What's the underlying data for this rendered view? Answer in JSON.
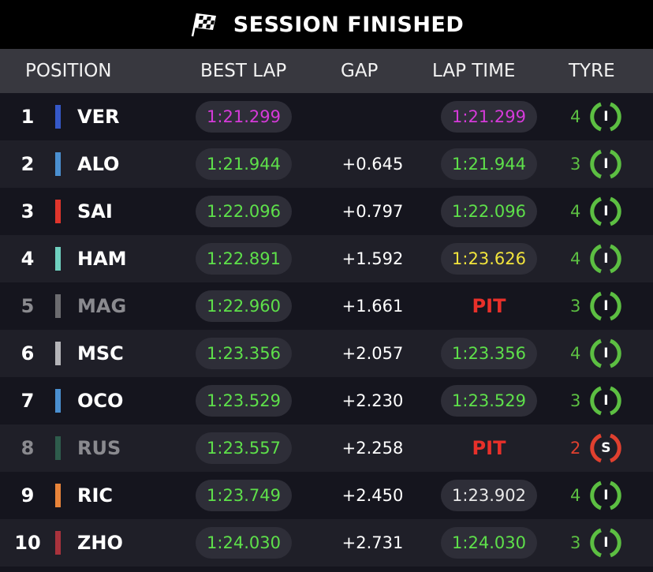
{
  "header": {
    "title": "SESSION FINISHED",
    "icon": "checkered-flag-icon"
  },
  "columns": {
    "position": "POSITION",
    "best_lap": "BEST LAP",
    "gap": "GAP",
    "lap_time": "LAP TIME",
    "tyre": "TYRE"
  },
  "colors": {
    "purple": "#d53ad9",
    "green": "#5ee04a",
    "yellow": "#f2e43c",
    "white": "#e8e8e8",
    "soft": "#e0402f",
    "inter": "#5cbf42"
  },
  "rows": [
    {
      "pos": "1",
      "driver": "VER",
      "team_color": "#3558c8",
      "best": "1:21.299",
      "best_color": "#d53ad9",
      "gap": "",
      "lap": "1:21.299",
      "lap_color": "#d53ad9",
      "laps": "4",
      "tyre": "I",
      "tyre_color": "#5cbf42",
      "dim": false
    },
    {
      "pos": "2",
      "driver": "ALO",
      "team_color": "#4a8fd0",
      "best": "1:21.944",
      "best_color": "#5ee04a",
      "gap": "+0.645",
      "lap": "1:21.944",
      "lap_color": "#5ee04a",
      "laps": "3",
      "tyre": "I",
      "tyre_color": "#5cbf42",
      "dim": false
    },
    {
      "pos": "3",
      "driver": "SAI",
      "team_color": "#e0352c",
      "best": "1:22.096",
      "best_color": "#5ee04a",
      "gap": "+0.797",
      "lap": "1:22.096",
      "lap_color": "#5ee04a",
      "laps": "4",
      "tyre": "I",
      "tyre_color": "#5cbf42",
      "dim": false
    },
    {
      "pos": "4",
      "driver": "HAM",
      "team_color": "#6fd0bf",
      "best": "1:22.891",
      "best_color": "#5ee04a",
      "gap": "+1.592",
      "lap": "1:23.626",
      "lap_color": "#f2e43c",
      "laps": "4",
      "tyre": "I",
      "tyre_color": "#5cbf42",
      "dim": false
    },
    {
      "pos": "5",
      "driver": "MAG",
      "team_color": "#6c6c70",
      "best": "1:22.960",
      "best_color": "#5ee04a",
      "gap": "+1.661",
      "lap": "PIT",
      "lap_color": "#e8302a",
      "laps": "3",
      "tyre": "I",
      "tyre_color": "#5cbf42",
      "dim": true
    },
    {
      "pos": "6",
      "driver": "MSC",
      "team_color": "#b4b4b8",
      "best": "1:23.356",
      "best_color": "#5ee04a",
      "gap": "+2.057",
      "lap": "1:23.356",
      "lap_color": "#5ee04a",
      "laps": "4",
      "tyre": "I",
      "tyre_color": "#5cbf42",
      "dim": false
    },
    {
      "pos": "7",
      "driver": "OCO",
      "team_color": "#4a8fd0",
      "best": "1:23.529",
      "best_color": "#5ee04a",
      "gap": "+2.230",
      "lap": "1:23.529",
      "lap_color": "#5ee04a",
      "laps": "3",
      "tyre": "I",
      "tyre_color": "#5cbf42",
      "dim": false
    },
    {
      "pos": "8",
      "driver": "RUS",
      "team_color": "#2e5c4c",
      "best": "1:23.557",
      "best_color": "#5ee04a",
      "gap": "+2.258",
      "lap": "PIT",
      "lap_color": "#e8302a",
      "laps": "2",
      "tyre": "S",
      "tyre_color": "#e0402f",
      "dim": true
    },
    {
      "pos": "9",
      "driver": "RIC",
      "team_color": "#e8843a",
      "best": "1:23.749",
      "best_color": "#5ee04a",
      "gap": "+2.450",
      "lap": "1:23.902",
      "lap_color": "#e8e8e8",
      "laps": "4",
      "tyre": "I",
      "tyre_color": "#5cbf42",
      "dim": false
    },
    {
      "pos": "10",
      "driver": "ZHO",
      "team_color": "#a8323c",
      "best": "1:24.030",
      "best_color": "#5ee04a",
      "gap": "+2.731",
      "lap": "1:24.030",
      "lap_color": "#5ee04a",
      "laps": "3",
      "tyre": "I",
      "tyre_color": "#5cbf42",
      "dim": false
    }
  ]
}
